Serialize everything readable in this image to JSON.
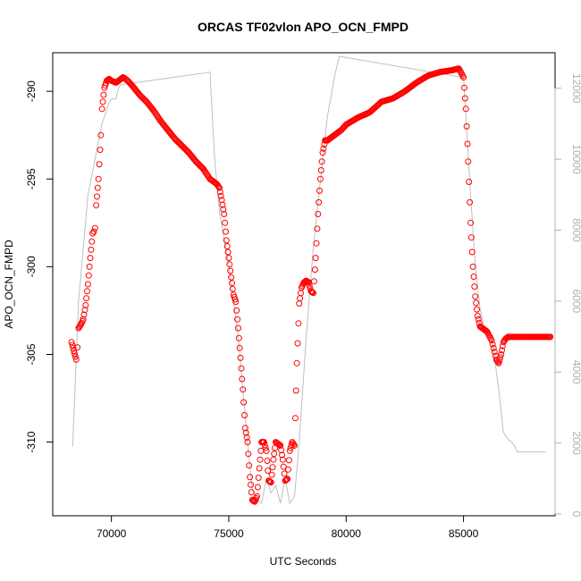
{
  "chart_data": {
    "type": "scatter",
    "title": "ORCAS TF02vlon APO_OCN_FMPD",
    "xlabel": "UTC Seconds",
    "ylabel": "APO_OCN_FMPD",
    "xlim": [
      67500,
      88900
    ],
    "ylim": [
      -314.2,
      -287.8
    ],
    "y2lim": [
      -50,
      13000
    ],
    "x_ticks": [
      70000,
      75000,
      80000,
      85000
    ],
    "y_ticks": [
      -310,
      -305,
      -300,
      -295,
      -290
    ],
    "y2_ticks": [
      0,
      2000,
      4000,
      6000,
      8000,
      10000,
      12000
    ],
    "x_tick_labels": [
      "70000",
      "75000",
      "80000",
      "85000"
    ],
    "y_tick_labels": [
      "-310",
      "-305",
      "-300",
      "-295",
      "-290"
    ],
    "y2_tick_labels": [
      "0",
      "2000",
      "4000",
      "6000",
      "8000",
      "10000",
      "12000"
    ],
    "grid": false,
    "colors": {
      "points": "#ff0000",
      "altitude": "#c0c0c0",
      "axis": "#000000",
      "axis2": "#b0b0b0"
    },
    "series": [
      {
        "type": "scatter",
        "color": "#ff0000",
        "x": [
          68300,
          68400,
          68500,
          68550,
          68600,
          68700,
          68800,
          68900,
          69000,
          69100,
          69200,
          69250,
          69300,
          69350,
          69450,
          69550,
          69600,
          69700,
          69800,
          69900,
          70000,
          70200,
          70400,
          70500,
          70700,
          70900,
          71200,
          71500,
          71800,
          72100,
          72400,
          72700,
          73000,
          73300,
          73600,
          73900,
          74200,
          74400,
          74500,
          74600,
          74700,
          74800,
          74900,
          75000,
          75100,
          75200,
          75300,
          75400,
          75500,
          75600,
          75700,
          75800,
          75900,
          76000,
          76100,
          76200,
          76300,
          76400,
          76500,
          76600,
          76700,
          76800,
          76900,
          77000,
          77100,
          77200,
          77300,
          77400,
          77500,
          77600,
          77700,
          77800,
          77900,
          78000,
          78100,
          78200,
          78300,
          78400,
          78500,
          78600,
          78700,
          78800,
          78900,
          79000,
          79100,
          79200,
          79300,
          79400,
          79500,
          79600,
          79700,
          79800,
          80000,
          80500,
          81000,
          81500,
          82000,
          82500,
          83000,
          83500,
          84000,
          84500,
          84800,
          85000,
          85100,
          85200,
          85300,
          85400,
          85500,
          85600,
          85700,
          85800,
          85900,
          86000,
          86200,
          86400,
          86500,
          86600,
          86700,
          86800,
          86900,
          87000,
          87500,
          88000,
          88500,
          88700
        ],
        "y": [
          -304.3,
          -304.8,
          -305.3,
          -304.6,
          -303.5,
          -303.3,
          -303.0,
          -302.2,
          -301.0,
          -299.5,
          -298.1,
          -298.0,
          -297.8,
          -296.5,
          -295.0,
          -292.5,
          -291.0,
          -289.8,
          -289.4,
          -289.3,
          -289.4,
          -289.5,
          -289.3,
          -289.2,
          -289.4,
          -289.7,
          -290.2,
          -290.6,
          -291.1,
          -291.7,
          -292.2,
          -292.7,
          -293.1,
          -293.5,
          -294.0,
          -294.4,
          -295.0,
          -295.2,
          -295.3,
          -295.5,
          -296.2,
          -297.0,
          -298.5,
          -299.5,
          -300.6,
          -301.6,
          -302.0,
          -303.5,
          -305.2,
          -307.0,
          -309.2,
          -310.0,
          -312.0,
          -313.3,
          -313.4,
          -313.1,
          -311.5,
          -310.0,
          -310.0,
          -310.5,
          -312.2,
          -312.3,
          -311.0,
          -310.0,
          -310.1,
          -310.2,
          -311.0,
          -312.2,
          -312.1,
          -310.5,
          -310.0,
          -310.2,
          -305.5,
          -302.1,
          -301.2,
          -300.9,
          -300.8,
          -300.9,
          -301.4,
          -301.5,
          -299.5,
          -297.0,
          -295.0,
          -293.5,
          -292.8,
          -292.8,
          -292.7,
          -292.6,
          -292.5,
          -292.4,
          -292.3,
          -292.2,
          -291.9,
          -291.5,
          -291.2,
          -290.6,
          -290.4,
          -290.0,
          -289.5,
          -289.1,
          -288.9,
          -288.8,
          -288.7,
          -289.2,
          -291.0,
          -294.0,
          -297.5,
          -300.0,
          -301.7,
          -302.8,
          -303.4,
          -303.5,
          -303.6,
          -303.7,
          -304.2,
          -305.3,
          -305.5,
          -305.0,
          -304.3,
          -304.1,
          -304.0,
          -304.0,
          -304.0,
          -304.0,
          -304.0,
          -304.0
        ]
      },
      {
        "type": "line",
        "axis": "right",
        "color": "#c0c0c0",
        "x": [
          68350,
          68600,
          69000,
          69300,
          69600,
          69900,
          70000,
          70200,
          70300,
          70400,
          74200,
          74250,
          74400,
          74600,
          75000,
          75200,
          75400,
          75600,
          75800,
          76000,
          76200,
          76400,
          76600,
          76800,
          77000,
          77200,
          77400,
          77600,
          77800,
          78000,
          78300,
          78600,
          79000,
          79200,
          79500,
          79700,
          85000,
          85300,
          85500,
          85700,
          85900,
          86200,
          86500,
          86700,
          86900,
          87100,
          87300,
          88500
        ],
        "y": [
          1900,
          6000,
          9000,
          10000,
          11000,
          11600,
          11700,
          11700,
          12000,
          12100,
          12450,
          11800,
          10000,
          8500,
          7000,
          6000,
          5000,
          3500,
          2000,
          700,
          400,
          300,
          1000,
          600,
          800,
          300,
          1000,
          300,
          500,
          2000,
          5000,
          7500,
          10000,
          11200,
          12300,
          12900,
          12300,
          9000,
          7000,
          5800,
          5200,
          5000,
          3500,
          2300,
          2100,
          2000,
          1750,
          1750
        ]
      }
    ]
  }
}
